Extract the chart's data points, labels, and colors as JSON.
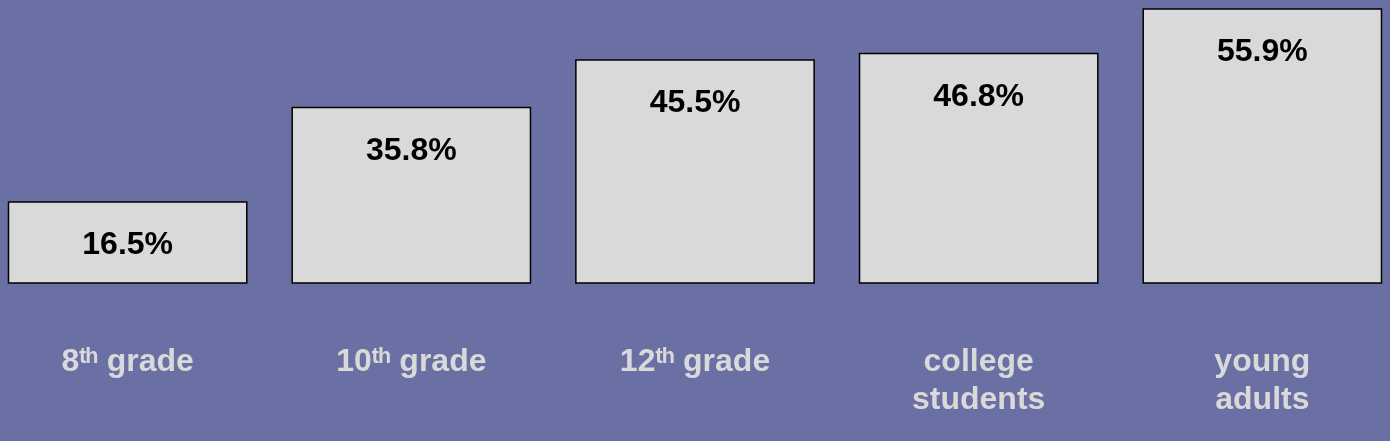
{
  "chart_data": {
    "type": "bar",
    "categories": [
      "8ᵗʰ grade",
      "10ᵗʰ grade",
      "12ᵗʰ grade",
      "college students",
      "young adults"
    ],
    "values": [
      16.5,
      35.8,
      45.5,
      46.8,
      55.9
    ],
    "color": "#d9d9d9",
    "value_labels": [
      "16.5%",
      "35.8%",
      "45.5%",
      "46.8%",
      "55.9%"
    ]
  }
}
